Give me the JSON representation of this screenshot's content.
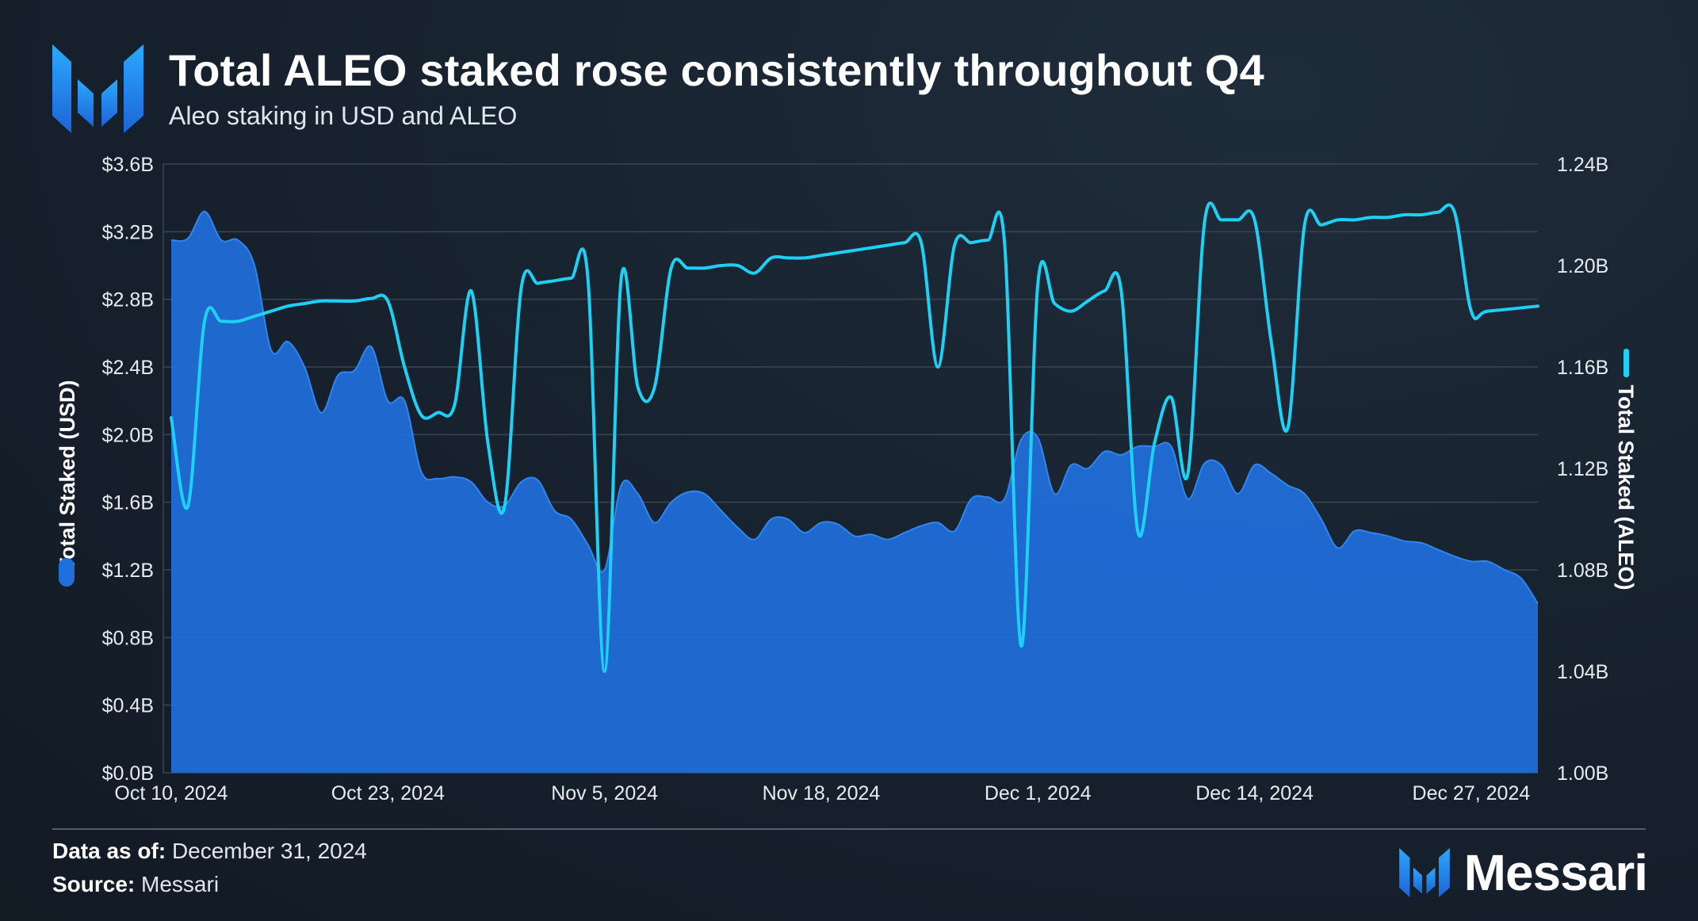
{
  "header": {
    "title": "Total ALEO staked rose consistently throughout Q4",
    "subtitle": "Aleo staking in USD and ALEO"
  },
  "footer": {
    "data_as_of_label": "Data as of:",
    "data_as_of_value": "December 31, 2024",
    "source_label": "Source:",
    "source_value": "Messari",
    "brand": "Messari"
  },
  "colors": {
    "usd_area": "#1f6fdc",
    "aleo_line": "#1fd0f5",
    "background": "#16202b",
    "grid": "#3a4553",
    "axis_text": "#e6ebf0"
  },
  "chart_data": {
    "type": "area",
    "xlabel": "",
    "x_tick_labels": [
      "Oct 10, 2024",
      "Oct 23, 2024",
      "Nov 5, 2024",
      "Nov 18, 2024",
      "Dec 1, 2024",
      "Dec 14, 2024",
      "Dec 27, 2024"
    ],
    "x_range": [
      "2024-10-10",
      "2024-12-31"
    ],
    "y_left": {
      "label": "Total Staked (USD)",
      "ticks": [
        "$0.0B",
        "$0.4B",
        "$0.8B",
        "$1.2B",
        "$1.6B",
        "$2.0B",
        "$2.4B",
        "$2.8B",
        "$3.2B",
        "$3.6B"
      ],
      "range": [
        0,
        3.6
      ],
      "unit": "USD billions"
    },
    "y_right": {
      "label": "Total Staked (ALEO)",
      "ticks": [
        "1.00B",
        "1.04B",
        "1.08B",
        "1.12B",
        "1.16B",
        "1.20B",
        "1.24B"
      ],
      "range": [
        1.0,
        1.24
      ],
      "unit": "ALEO billions"
    },
    "grid": true,
    "series": [
      {
        "name": "Total Staked (USD)",
        "kind": "area",
        "axis": "left",
        "points": [
          [
            "2024-10-10",
            3.15
          ],
          [
            "2024-10-11",
            3.16
          ],
          [
            "2024-10-12",
            3.32
          ],
          [
            "2024-10-13",
            3.15
          ],
          [
            "2024-10-14",
            3.15
          ],
          [
            "2024-10-15",
            3.0
          ],
          [
            "2024-10-16",
            2.5
          ],
          [
            "2024-10-17",
            2.55
          ],
          [
            "2024-10-18",
            2.4
          ],
          [
            "2024-10-19",
            2.13
          ],
          [
            "2024-10-20",
            2.35
          ],
          [
            "2024-10-21",
            2.38
          ],
          [
            "2024-10-22",
            2.52
          ],
          [
            "2024-10-23",
            2.2
          ],
          [
            "2024-10-24",
            2.2
          ],
          [
            "2024-10-25",
            1.78
          ],
          [
            "2024-10-26",
            1.74
          ],
          [
            "2024-10-27",
            1.75
          ],
          [
            "2024-10-28",
            1.72
          ],
          [
            "2024-10-29",
            1.6
          ],
          [
            "2024-10-30",
            1.58
          ],
          [
            "2024-10-31",
            1.72
          ],
          [
            "2024-11-01",
            1.73
          ],
          [
            "2024-11-02",
            1.55
          ],
          [
            "2024-11-03",
            1.5
          ],
          [
            "2024-11-04",
            1.35
          ],
          [
            "2024-11-05",
            1.2
          ],
          [
            "2024-11-06",
            1.7
          ],
          [
            "2024-11-07",
            1.65
          ],
          [
            "2024-11-08",
            1.48
          ],
          [
            "2024-11-09",
            1.6
          ],
          [
            "2024-11-10",
            1.66
          ],
          [
            "2024-11-11",
            1.65
          ],
          [
            "2024-11-12",
            1.55
          ],
          [
            "2024-11-13",
            1.45
          ],
          [
            "2024-11-14",
            1.38
          ],
          [
            "2024-11-15",
            1.5
          ],
          [
            "2024-11-16",
            1.5
          ],
          [
            "2024-11-17",
            1.42
          ],
          [
            "2024-11-18",
            1.48
          ],
          [
            "2024-11-19",
            1.47
          ],
          [
            "2024-11-20",
            1.4
          ],
          [
            "2024-11-21",
            1.41
          ],
          [
            "2024-11-22",
            1.38
          ],
          [
            "2024-11-23",
            1.42
          ],
          [
            "2024-11-24",
            1.46
          ],
          [
            "2024-11-25",
            1.48
          ],
          [
            "2024-11-26",
            1.43
          ],
          [
            "2024-11-27",
            1.62
          ],
          [
            "2024-11-28",
            1.63
          ],
          [
            "2024-11-29",
            1.62
          ],
          [
            "2024-11-30",
            1.97
          ],
          [
            "2024-12-01",
            1.98
          ],
          [
            "2024-12-02",
            1.65
          ],
          [
            "2024-12-03",
            1.82
          ],
          [
            "2024-12-04",
            1.8
          ],
          [
            "2024-12-05",
            1.9
          ],
          [
            "2024-12-06",
            1.88
          ],
          [
            "2024-12-07",
            1.93
          ],
          [
            "2024-12-08",
            1.93
          ],
          [
            "2024-12-09",
            1.93
          ],
          [
            "2024-12-10",
            1.62
          ],
          [
            "2024-12-11",
            1.83
          ],
          [
            "2024-12-12",
            1.82
          ],
          [
            "2024-12-13",
            1.65
          ],
          [
            "2024-12-14",
            1.82
          ],
          [
            "2024-12-15",
            1.77
          ],
          [
            "2024-12-16",
            1.7
          ],
          [
            "2024-12-17",
            1.65
          ],
          [
            "2024-12-18",
            1.5
          ],
          [
            "2024-12-19",
            1.33
          ],
          [
            "2024-12-20",
            1.43
          ],
          [
            "2024-12-21",
            1.42
          ],
          [
            "2024-12-22",
            1.4
          ],
          [
            "2024-12-23",
            1.37
          ],
          [
            "2024-12-24",
            1.36
          ],
          [
            "2024-12-25",
            1.32
          ],
          [
            "2024-12-26",
            1.28
          ],
          [
            "2024-12-27",
            1.25
          ],
          [
            "2024-12-28",
            1.25
          ],
          [
            "2024-12-29",
            1.2
          ],
          [
            "2024-12-30",
            1.15
          ],
          [
            "2024-12-31",
            1.0
          ]
        ]
      },
      {
        "name": "Total Staked (ALEO)",
        "kind": "line",
        "axis": "right",
        "points": [
          [
            "2024-10-10",
            1.14
          ],
          [
            "2024-10-11",
            1.105
          ],
          [
            "2024-10-12",
            1.178
          ],
          [
            "2024-10-13",
            1.178
          ],
          [
            "2024-10-14",
            1.178
          ],
          [
            "2024-10-15",
            1.18
          ],
          [
            "2024-10-16",
            1.182
          ],
          [
            "2024-10-17",
            1.184
          ],
          [
            "2024-10-18",
            1.185
          ],
          [
            "2024-10-19",
            1.186
          ],
          [
            "2024-10-20",
            1.186
          ],
          [
            "2024-10-21",
            1.186
          ],
          [
            "2024-10-22",
            1.187
          ],
          [
            "2024-10-23",
            1.186
          ],
          [
            "2024-10-24",
            1.16
          ],
          [
            "2024-10-25",
            1.141
          ],
          [
            "2024-10-26",
            1.142
          ],
          [
            "2024-10-27",
            1.145
          ],
          [
            "2024-10-28",
            1.19
          ],
          [
            "2024-10-29",
            1.13
          ],
          [
            "2024-10-30",
            1.105
          ],
          [
            "2024-10-31",
            1.191
          ],
          [
            "2024-11-01",
            1.193
          ],
          [
            "2024-11-02",
            1.194
          ],
          [
            "2024-11-03",
            1.195
          ],
          [
            "2024-11-04",
            1.195
          ],
          [
            "2024-11-05",
            1.04
          ],
          [
            "2024-11-06",
            1.195
          ],
          [
            "2024-11-07",
            1.152
          ],
          [
            "2024-11-08",
            1.152
          ],
          [
            "2024-11-09",
            1.199
          ],
          [
            "2024-11-10",
            1.199
          ],
          [
            "2024-11-11",
            1.199
          ],
          [
            "2024-11-12",
            1.2
          ],
          [
            "2024-11-13",
            1.2
          ],
          [
            "2024-11-14",
            1.197
          ],
          [
            "2024-11-15",
            1.203
          ],
          [
            "2024-11-16",
            1.203
          ],
          [
            "2024-11-17",
            1.203
          ],
          [
            "2024-11-18",
            1.204
          ],
          [
            "2024-11-19",
            1.205
          ],
          [
            "2024-11-20",
            1.206
          ],
          [
            "2024-11-21",
            1.207
          ],
          [
            "2024-11-22",
            1.208
          ],
          [
            "2024-11-23",
            1.209
          ],
          [
            "2024-11-24",
            1.209
          ],
          [
            "2024-11-25",
            1.16
          ],
          [
            "2024-11-26",
            1.208
          ],
          [
            "2024-11-27",
            1.209
          ],
          [
            "2024-11-28",
            1.21
          ],
          [
            "2024-11-29",
            1.209
          ],
          [
            "2024-11-30",
            1.05
          ],
          [
            "2024-12-01",
            1.193
          ],
          [
            "2024-12-02",
            1.185
          ],
          [
            "2024-12-03",
            1.182
          ],
          [
            "2024-12-04",
            1.186
          ],
          [
            "2024-12-05",
            1.19
          ],
          [
            "2024-12-06",
            1.19
          ],
          [
            "2024-12-07",
            1.095
          ],
          [
            "2024-12-08",
            1.13
          ],
          [
            "2024-12-09",
            1.148
          ],
          [
            "2024-12-10",
            1.118
          ],
          [
            "2024-12-11",
            1.217
          ],
          [
            "2024-12-12",
            1.218
          ],
          [
            "2024-12-13",
            1.218
          ],
          [
            "2024-12-14",
            1.218
          ],
          [
            "2024-12-15",
            1.17
          ],
          [
            "2024-12-16",
            1.136
          ],
          [
            "2024-12-17",
            1.216
          ],
          [
            "2024-12-18",
            1.216
          ],
          [
            "2024-12-19",
            1.218
          ],
          [
            "2024-12-20",
            1.218
          ],
          [
            "2024-12-21",
            1.219
          ],
          [
            "2024-12-22",
            1.219
          ],
          [
            "2024-12-23",
            1.22
          ],
          [
            "2024-12-24",
            1.22
          ],
          [
            "2024-12-25",
            1.221
          ],
          [
            "2024-12-26",
            1.221
          ],
          [
            "2024-12-27",
            1.182
          ],
          [
            "2024-12-28",
            1.182
          ],
          [
            "2024-12-31",
            1.184
          ]
        ]
      }
    ],
    "legend": "rotated labels beside each y-axis"
  }
}
